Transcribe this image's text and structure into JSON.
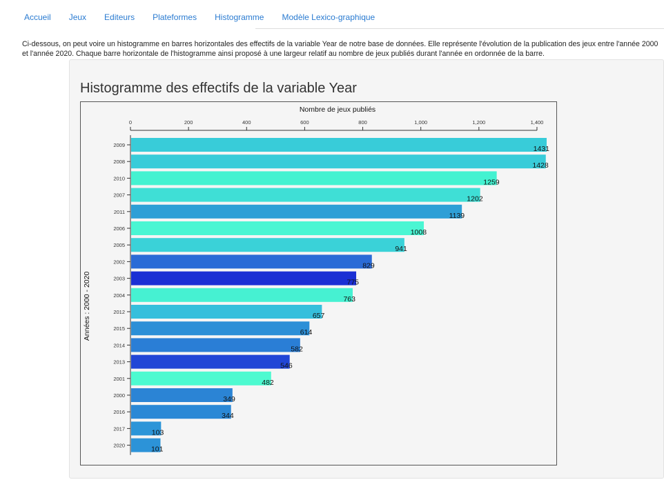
{
  "nav": {
    "items": [
      {
        "label": "Accueil"
      },
      {
        "label": "Jeux"
      },
      {
        "label": "Editeurs"
      },
      {
        "label": "Plateformes"
      },
      {
        "label": "Histogramme"
      },
      {
        "label": "Modèle Lexico-graphique"
      }
    ]
  },
  "intro_text": "Ci-dessous, on peut voire un histogramme en barres horizontales des effectifs de la variable Year de notre base de données. Elle représente l'évolution de la publication des jeux entre l'année 2000 et l'année 2020. Chaque barre horizontale de l'histogramme ainsi proposé à une largeur relatif au nombre de jeux publiés durant l'année en ordonnée de la barre.",
  "panel": {
    "title": "Histogramme des effectifs de la variable Year"
  },
  "chart_data": {
    "type": "bar",
    "orientation": "horizontal",
    "title": "",
    "xlabel": "Nombre de jeux publiés",
    "ylabel": "Années : 2000 - 2020",
    "xlim": [
      0,
      1431
    ],
    "x_ticks": [
      0,
      200,
      400,
      600,
      800,
      1000,
      1200,
      1400
    ],
    "x_tick_labels": [
      "0",
      "200",
      "400",
      "600",
      "800",
      "1,000",
      "1,200",
      "1,400"
    ],
    "x_axis_position": "top",
    "grid": false,
    "categories": [
      "2009",
      "2008",
      "2010",
      "2007",
      "2011",
      "2006",
      "2005",
      "2002",
      "2003",
      "2004",
      "2012",
      "2015",
      "2014",
      "2013",
      "2001",
      "2000",
      "2016",
      "2017",
      "2020"
    ],
    "values": [
      1431,
      1428,
      1259,
      1202,
      1139,
      1008,
      941,
      829,
      775,
      763,
      657,
      614,
      582,
      546,
      482,
      349,
      344,
      103,
      101
    ],
    "colors": [
      "#38ccd9",
      "#38ccd9",
      "#44f2d1",
      "#3fdfd6",
      "#2e9fd6",
      "#4af6d3",
      "#3ad2d8",
      "#2a6bd6",
      "#1a2fd4",
      "#46f1d2",
      "#35bfdc",
      "#2c8fd7",
      "#2a7ed6",
      "#2146d6",
      "#4dfad0",
      "#2b84d5",
      "#2a88d6",
      "#2c95d8",
      "#2c93d8"
    ]
  }
}
